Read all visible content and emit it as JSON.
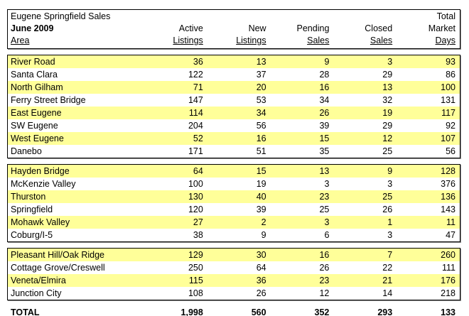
{
  "colors": {
    "row_highlight": "#FFFF99",
    "border": "#000000",
    "shadow": "#8f8f8f",
    "background": "#FFFFFF"
  },
  "header": {
    "title_line1": "Eugene Springfield Sales",
    "title_line2": "June 2009",
    "area_label": "Area",
    "columns": [
      {
        "line1": "",
        "line2": "Active",
        "line3": "Listings"
      },
      {
        "line1": "",
        "line2": "New",
        "line3": "Listings"
      },
      {
        "line1": "",
        "line2": "Pending",
        "line3": "Sales"
      },
      {
        "line1": "",
        "line2": "Closed",
        "line3": "Sales"
      },
      {
        "line1": "Total",
        "line2": "Market",
        "line3": "Days"
      }
    ]
  },
  "groups": [
    {
      "rows": [
        {
          "area": "River Road",
          "values": [
            36,
            13,
            9,
            3,
            93
          ]
        },
        {
          "area": "Santa Clara",
          "values": [
            122,
            37,
            28,
            29,
            86
          ]
        },
        {
          "area": "North Gilham",
          "values": [
            71,
            20,
            16,
            13,
            100
          ]
        },
        {
          "area": "Ferry Street Bridge",
          "values": [
            147,
            53,
            34,
            32,
            131
          ]
        },
        {
          "area": "East Eugene",
          "values": [
            114,
            34,
            26,
            19,
            117
          ]
        },
        {
          "area": "SW Eugene",
          "values": [
            204,
            56,
            39,
            29,
            92
          ]
        },
        {
          "area": "West Eugene",
          "values": [
            52,
            16,
            15,
            12,
            107
          ]
        },
        {
          "area": "Danebo",
          "values": [
            171,
            51,
            35,
            25,
            56
          ]
        }
      ]
    },
    {
      "rows": [
        {
          "area": "Hayden Bridge",
          "values": [
            64,
            15,
            13,
            9,
            128
          ]
        },
        {
          "area": "McKenzie Valley",
          "values": [
            100,
            19,
            3,
            3,
            376
          ]
        },
        {
          "area": "Thurston",
          "values": [
            130,
            40,
            23,
            25,
            136
          ]
        },
        {
          "area": "Springfield",
          "values": [
            120,
            39,
            25,
            26,
            143
          ]
        },
        {
          "area": "Mohawk Valley",
          "values": [
            27,
            2,
            3,
            1,
            11
          ]
        },
        {
          "area": "Coburg/I-5",
          "values": [
            38,
            9,
            6,
            3,
            47
          ]
        }
      ]
    },
    {
      "rows": [
        {
          "area": "Pleasant Hill/Oak Ridge",
          "values": [
            129,
            30,
            16,
            7,
            260
          ]
        },
        {
          "area": "Cottage Grove/Creswell",
          "values": [
            250,
            64,
            26,
            22,
            111
          ]
        },
        {
          "area": "Veneta/Elmira",
          "values": [
            115,
            36,
            23,
            21,
            176
          ]
        },
        {
          "area": "Junction City",
          "values": [
            108,
            26,
            12,
            14,
            218
          ]
        }
      ]
    }
  ],
  "total": {
    "label": "TOTAL",
    "values": [
      "1,998",
      "560",
      "352",
      "293",
      "133"
    ]
  }
}
